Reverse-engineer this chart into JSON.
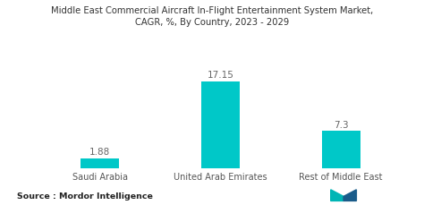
{
  "title": "Middle East Commercial Aircraft In-Flight Entertainment System Market,\nCAGR, %, By Country, 2023 - 2029",
  "categories": [
    "Saudi Arabia",
    "United Arab Emirates",
    "Rest of Middle East"
  ],
  "values": [
    1.88,
    17.15,
    7.3
  ],
  "bar_color": "#00c8c8",
  "background_color": "#ffffff",
  "source_text": "Source : Mordor Intelligence",
  "title_fontsize": 7.2,
  "label_fontsize": 7.0,
  "value_fontsize": 7.5,
  "source_fontsize": 6.8,
  "ylim": [
    0,
    21
  ],
  "bar_width": 0.32
}
